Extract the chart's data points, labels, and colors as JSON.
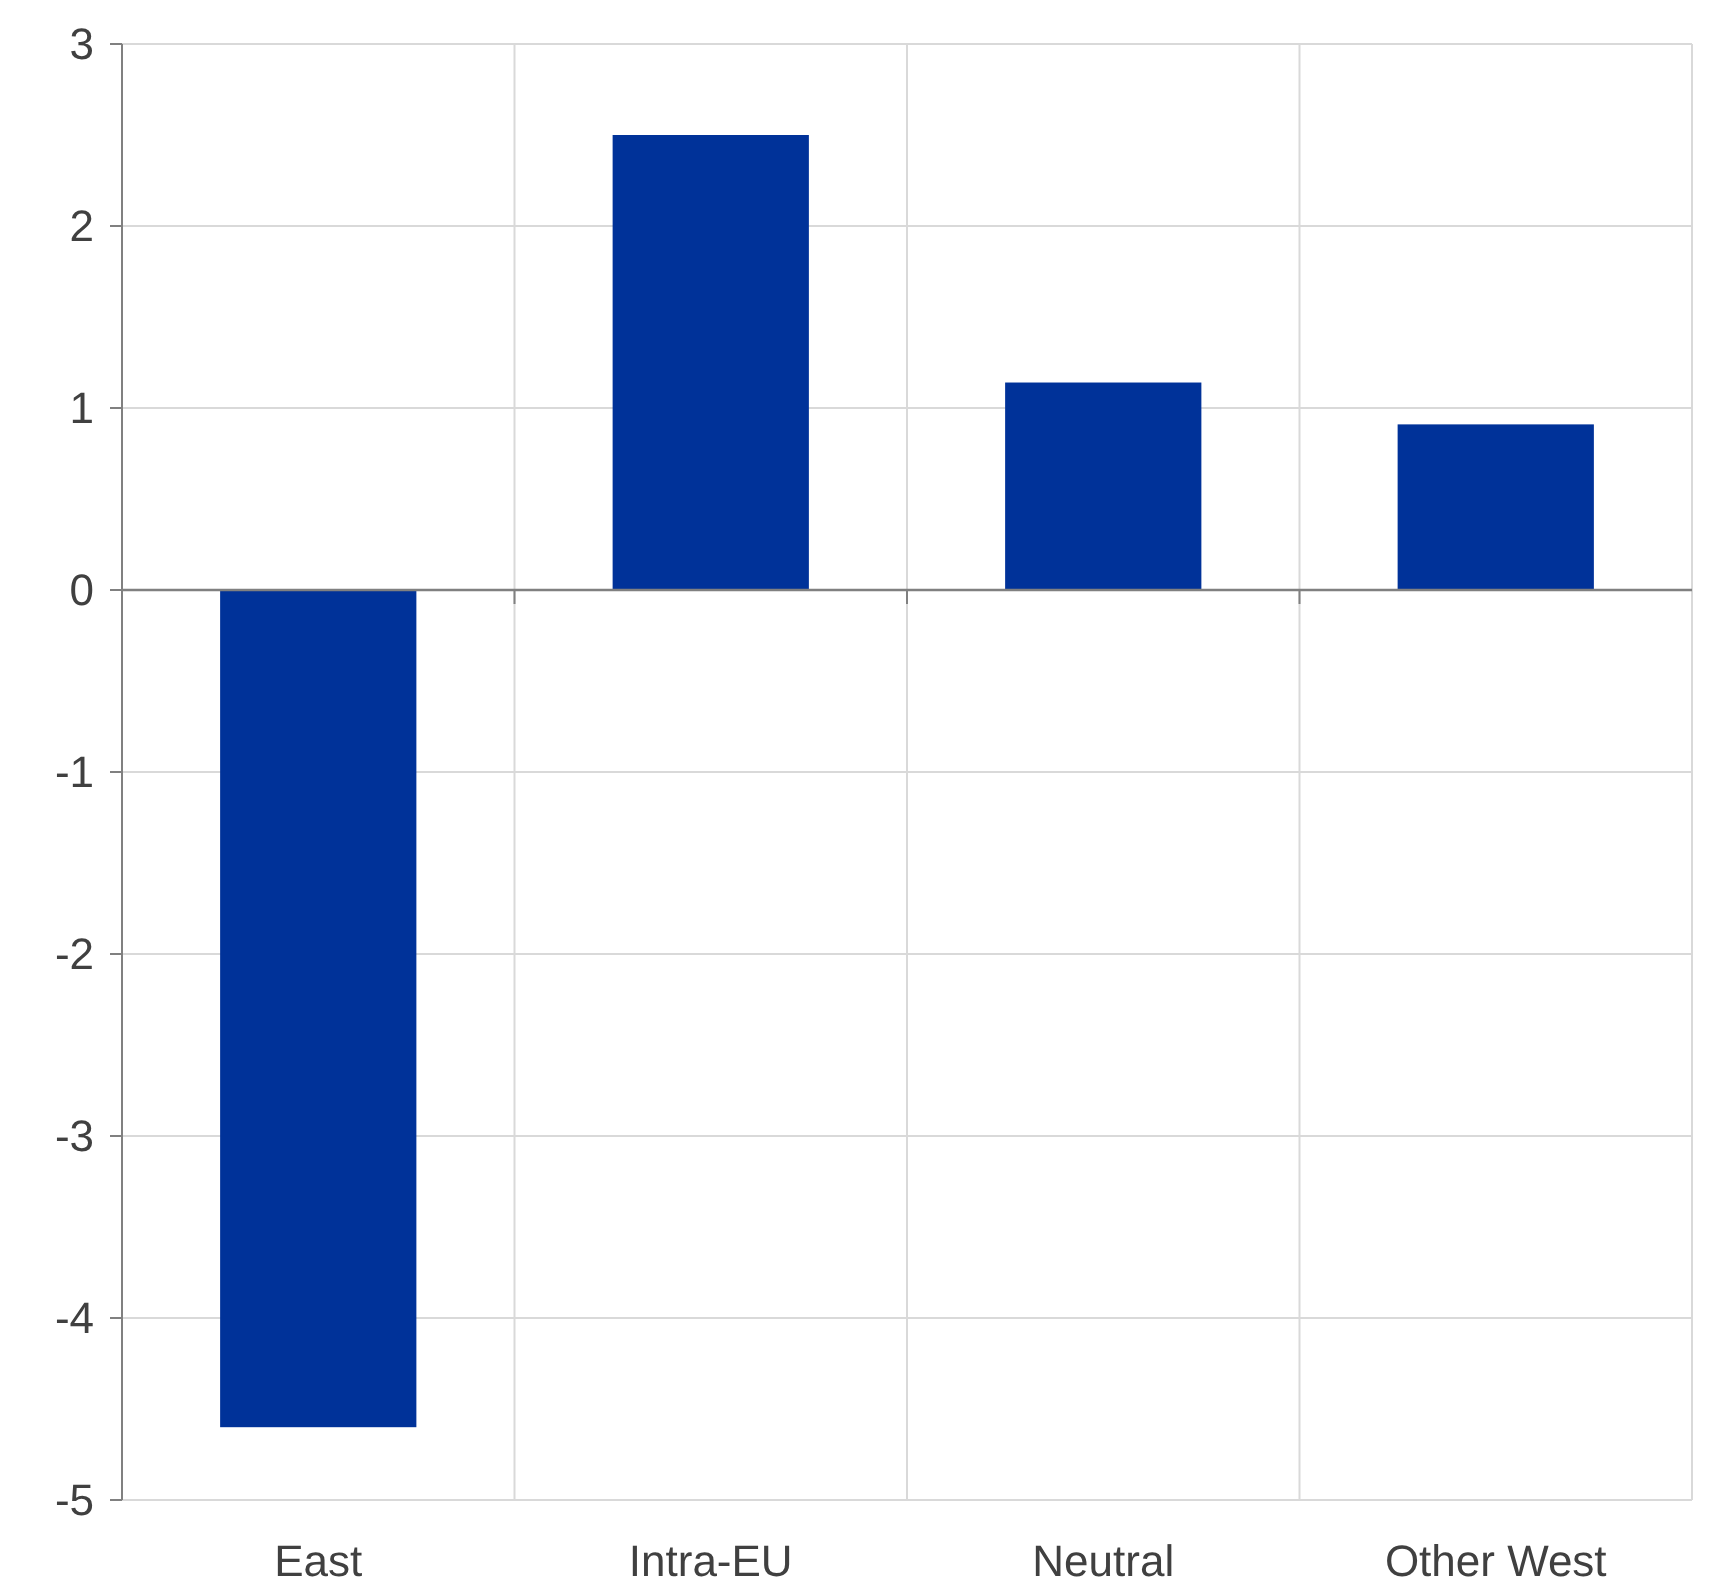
{
  "chart_data": {
    "type": "bar",
    "categories": [
      "East",
      "Intra-EU",
      "Neutral",
      "Other West"
    ],
    "values": [
      -4.6,
      2.5,
      1.14,
      0.91
    ],
    "color": "#003299",
    "ylim": [
      -5,
      3
    ],
    "yticks": [
      -5,
      -4,
      -3,
      -2,
      -1,
      0,
      1,
      2,
      3
    ],
    "grid": true
  }
}
